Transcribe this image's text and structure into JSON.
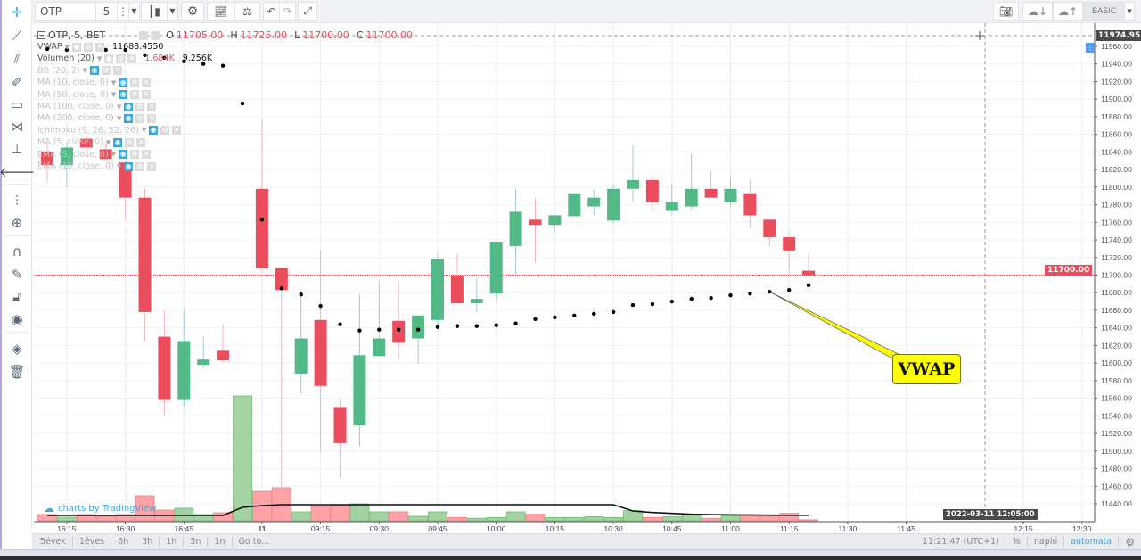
{
  "toolbar": {
    "symbol": "OTP",
    "interval": "5",
    "right_mode": "BASIC",
    "icons": [
      "crosshair-icon",
      "candles-icon",
      "gear-icon",
      "indicators-icon",
      "compare-icon",
      "undo-icon",
      "redo-icon",
      "fullscreen-icon",
      "camera-icon",
      "cloud-download-icon",
      "cloud-upload-icon"
    ]
  },
  "legend": {
    "title": "OTP, 5, BET",
    "o_label": "O",
    "o": "11705.00",
    "h_label": "H",
    "h": "11725.00",
    "l_label": "L",
    "l": "11700.00",
    "c_label": "C",
    "c": "11700.00",
    "studies": [
      {
        "name": "VWAP",
        "values": [
          "11688.4550"
        ],
        "active": true
      },
      {
        "name": "Volumen (20)",
        "values": [
          "1.684K",
          "9.256K"
        ],
        "active": true
      },
      {
        "name": "BB (20, 2)",
        "values": [],
        "active": false
      },
      {
        "name": "MA (10, close, 0)",
        "values": [],
        "active": false
      },
      {
        "name": "MA (50, close, 0)",
        "values": [],
        "active": false
      },
      {
        "name": "MA (100, close, 0)",
        "values": [],
        "active": false
      },
      {
        "name": "MA (200, close, 0)",
        "values": [],
        "active": false
      },
      {
        "name": "Ichimoku (9, 26, 52, 26)",
        "values": [],
        "active": false
      },
      {
        "name": "MA (5, close, 0)",
        "values": [],
        "active": false
      },
      {
        "name": "EMA (5, close, 0)",
        "values": [],
        "active": false
      },
      {
        "name": "EMA (10, close, 0)",
        "values": [],
        "active": false
      }
    ]
  },
  "watermark": "charts by TradingView",
  "annotation": "VWAP",
  "crosshair": {
    "price": "11974.95",
    "time": "2022-03-11 12:05:00"
  },
  "last_price_label": "11700.00",
  "colors": {
    "up": "#53b987",
    "down": "#eb4d5c",
    "vwap": "#000000",
    "callout": "#ffff00",
    "accent": "#36a7e0"
  },
  "bottom": {
    "ranges": [
      "5évek",
      "1éves",
      "6h",
      "3h",
      "1h",
      "5n",
      "1n",
      "Go to..."
    ],
    "clock": "11:21:47 (UTC+1)",
    "percent": "%",
    "log": "napló",
    "auto": "automata"
  },
  "chart_data": {
    "type": "candlestick",
    "y_ticks": [
      "11960.00",
      "11940.00",
      "11920.00",
      "11900.00",
      "11880.00",
      "11860.00",
      "11840.00",
      "11820.00",
      "11800.00",
      "11780.00",
      "11760.00",
      "11740.00",
      "11720.00",
      "11700.00",
      "11680.00",
      "11660.00",
      "11640.00",
      "11620.00",
      "11600.00",
      "11580.00",
      "11560.00",
      "11540.00",
      "11520.00",
      "11500.00",
      "11480.00",
      "11460.00",
      "11440.00"
    ],
    "x_ticks": [
      "16:15",
      "16:30",
      "16:45",
      "11",
      "09:15",
      "09:30",
      "09:45",
      "10:00",
      "10:15",
      "10:30",
      "10:45",
      "11:00",
      "11:15",
      "11:30",
      "11:45",
      "12:15",
      "12:30"
    ],
    "ylim": [
      11430,
      11985
    ],
    "times": [
      "16:10",
      "16:15",
      "16:20",
      "16:25",
      "16:30",
      "16:35",
      "16:40",
      "16:45",
      "16:50",
      "16:55",
      "17:00",
      "09:00",
      "09:05",
      "09:10",
      "09:15",
      "09:20",
      "09:25",
      "09:30",
      "09:35",
      "09:40",
      "09:45",
      "09:50",
      "09:55",
      "10:00",
      "10:05",
      "10:10",
      "10:15",
      "10:20",
      "10:25",
      "10:30",
      "10:35",
      "10:40",
      "10:45",
      "10:50",
      "10:55",
      "11:00",
      "11:05",
      "11:10",
      "11:15",
      "11:20"
    ],
    "ohlc": [
      [
        11840,
        11850,
        11805,
        11825
      ],
      [
        11825,
        11850,
        11800,
        11845
      ],
      [
        11855,
        11870,
        11835,
        11845
      ],
      [
        11843,
        11850,
        11830,
        11832
      ],
      [
        11828,
        11830,
        11764,
        11788
      ],
      [
        11788,
        11798,
        11625,
        11658
      ],
      [
        11630,
        11660,
        11540,
        11558
      ],
      [
        11558,
        11660,
        11550,
        11625
      ],
      [
        11598,
        11630,
        11594,
        11604
      ],
      [
        11614,
        11645,
        11600,
        11603
      ],
      null,
      [
        11798,
        11878,
        11703,
        11708
      ],
      [
        11708,
        11708,
        11455,
        11683
      ],
      [
        11588,
        11683,
        11565,
        11628
      ],
      [
        11649,
        11729,
        11499,
        11574
      ],
      [
        11550,
        11559,
        11470,
        11509
      ],
      [
        11529,
        11678,
        11505,
        11609
      ],
      [
        11608,
        11693,
        11608,
        11628
      ],
      [
        11648,
        11693,
        11604,
        11623
      ],
      [
        11628,
        11654,
        11599,
        11654
      ],
      [
        11649,
        11724,
        11640,
        11718
      ],
      [
        11699,
        11724,
        11668,
        11668
      ],
      [
        11668,
        11696,
        11658,
        11673
      ],
      [
        11679,
        11738,
        11670,
        11738
      ],
      [
        11733,
        11798,
        11698,
        11772
      ],
      [
        11763,
        11788,
        11714,
        11757
      ],
      [
        11757,
        11768,
        11749,
        11768
      ],
      [
        11767,
        11793,
        11767,
        11793
      ],
      [
        11778,
        11798,
        11768,
        11788
      ],
      [
        11762,
        11803,
        11759,
        11798
      ],
      [
        11798,
        11848,
        11784,
        11808
      ],
      [
        11808,
        11812,
        11774,
        11783
      ],
      [
        11773,
        11803,
        11768,
        11783
      ],
      [
        11778,
        11838,
        11774,
        11798
      ],
      [
        11798,
        11818,
        11788,
        11788
      ],
      [
        11783,
        11812,
        11778,
        11798
      ],
      [
        11793,
        11808,
        11753,
        11768
      ],
      [
        11763,
        11763,
        11733,
        11743
      ],
      [
        11743,
        11748,
        11700,
        11728
      ],
      [
        11705,
        11725,
        11700,
        11700
      ]
    ],
    "volume_k": [
      10.5,
      6,
      10.5,
      7.5,
      10.5,
      42,
      18,
      21,
      10.5,
      13.5,
      210,
      49.5,
      55.5,
      15,
      24,
      25.5,
      28.5,
      15,
      15,
      7.5,
      15,
      5.5,
      4.2,
      5.5,
      15,
      11,
      5.5,
      5.5,
      7,
      5.5,
      17,
      5.5,
      7,
      10.5,
      4.2,
      8.4,
      8.4,
      8.4,
      12.6,
      1.684
    ],
    "volume_up": [
      false,
      true,
      false,
      false,
      false,
      false,
      false,
      true,
      true,
      false,
      true,
      false,
      false,
      true,
      false,
      false,
      true,
      true,
      false,
      true,
      true,
      false,
      true,
      true,
      true,
      false,
      true,
      true,
      true,
      true,
      true,
      false,
      true,
      true,
      false,
      true,
      false,
      false,
      false,
      false
    ],
    "volume_ma_k": [
      9,
      9,
      9,
      9,
      9,
      9,
      9,
      9,
      9,
      9,
      22.5,
      25.5,
      27,
      27,
      27,
      27,
      27,
      27,
      27,
      27,
      27,
      27,
      27,
      27,
      27,
      27,
      27,
      27,
      27,
      27,
      16.5,
      14,
      12.5,
      11,
      10.5,
      10,
      9.8,
      9.5,
      9.3,
      9.256
    ],
    "vwap": [
      11957,
      11956,
      11956,
      11956,
      11956,
      11950,
      11947,
      11943,
      11940,
      11938,
      11895,
      11763,
      11685,
      11678,
      11665,
      11644,
      11637,
      11638,
      11638,
      11638,
      11641,
      11642,
      11642,
      11643,
      11645,
      11650,
      11652,
      11654,
      11656,
      11658,
      11666,
      11667,
      11670,
      11673,
      11674,
      11677,
      11679,
      11681,
      11683,
      11688.455
    ],
    "last_price": 11700
  }
}
